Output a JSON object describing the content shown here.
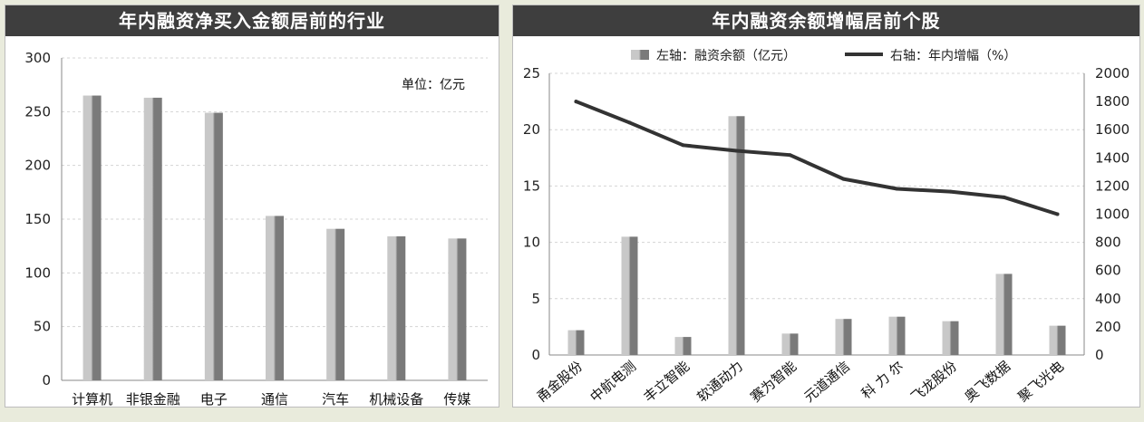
{
  "colors": {
    "title_bg": "#3e3e3e",
    "bar_light": "#c8c8c8",
    "bar_dark": "#7a7a7a",
    "line": "#333333",
    "grid": "#d4d4d4"
  },
  "chart_data": [
    {
      "type": "bar",
      "title": "年内融资净买入金额居前的行业",
      "unit_note": "单位：亿元",
      "categories": [
        "计算机",
        "非银金融",
        "电子",
        "通信",
        "汽车",
        "机械设备",
        "传媒"
      ],
      "values": [
        265,
        263,
        249,
        153,
        141,
        134,
        132
      ],
      "ylim": [
        0,
        300
      ],
      "yticks": [
        "0",
        "50",
        "100",
        "150",
        "200",
        "250",
        "300"
      ],
      "grid": true
    },
    {
      "type": "bar+line",
      "title": "年内融资余额增幅居前个股",
      "categories": [
        "甬金股份",
        "中航电测",
        "丰立智能",
        "软通动力",
        "赛为智能",
        "元道通信",
        "科  力  尔",
        "飞龙股份",
        "奥飞数据",
        "聚飞光电"
      ],
      "series": [
        {
          "name": "左轴：融资余额（亿元）",
          "type": "bar",
          "axis": "left",
          "values": [
            2.2,
            10.5,
            1.6,
            21.2,
            1.9,
            3.2,
            3.4,
            3.0,
            7.2,
            2.6
          ]
        },
        {
          "name": "右轴：年内增幅（%）",
          "type": "line",
          "axis": "right",
          "values": [
            1800,
            1650,
            1490,
            1450,
            1420,
            1250,
            1180,
            1160,
            1120,
            1000
          ]
        }
      ],
      "ylim_left": [
        0,
        25
      ],
      "yticks_left": [
        "0",
        "5",
        "10",
        "15",
        "20",
        "25"
      ],
      "ylim_right": [
        0,
        2000
      ],
      "yticks_right": [
        "0",
        "200",
        "400",
        "600",
        "800",
        "1000",
        "1200",
        "1400",
        "1600",
        "1800",
        "2000"
      ],
      "legend_position": "top",
      "grid": true
    }
  ]
}
